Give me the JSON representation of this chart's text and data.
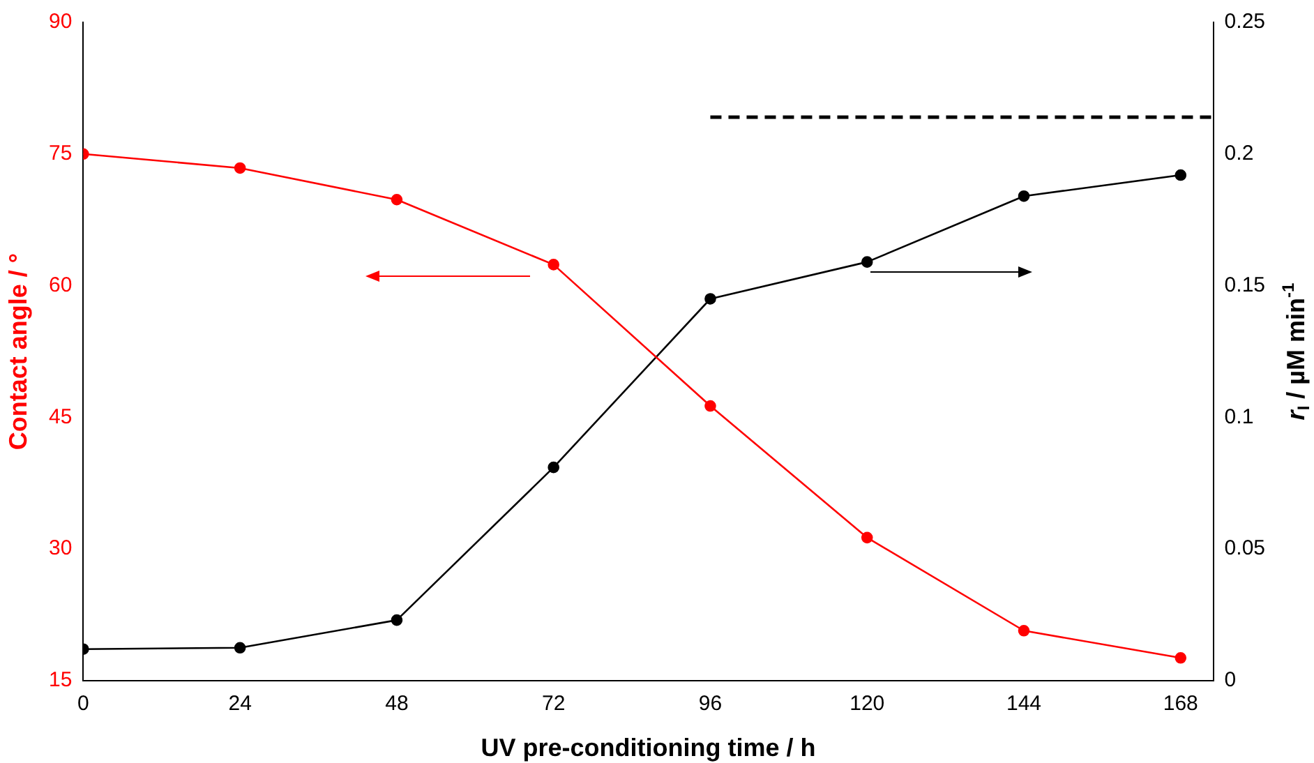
{
  "chart_data": {
    "type": "line",
    "xlabel": "UV pre-conditioning time / h",
    "ylabel": "Contact angle / °",
    "y2label": "r$_{I}$ / µM min$^{-1}$",
    "x": [
      0,
      24,
      48,
      72,
      96,
      120,
      144,
      168
    ],
    "series": [
      {
        "color": "#ff0000",
        "values": [
          75,
          73.4,
          69.8,
          62.4,
          46.3,
          31.3,
          20.7,
          17.6
        ]
      },
      {
        "color": "#000000",
        "axis": "y2",
        "values": [
          0.012,
          0.0125,
          0.023,
          0.081,
          0.145,
          0.159,
          0.184,
          0.192
        ]
      },
      {
        "color": "#000000",
        "axis": "y2",
        "x": [
          96,
          173
        ],
        "values": [
          0.214,
          0.214
        ],
        "line_style": "dashed",
        "marker": "none"
      }
    ],
    "xlim": [
      0,
      173
    ],
    "xticks": [
      0,
      24,
      48,
      72,
      96,
      120,
      144,
      168
    ],
    "ylim": [
      15,
      90
    ],
    "yticks": [
      15,
      30,
      45,
      60,
      75,
      90
    ],
    "y2lim": [
      0,
      0.25
    ],
    "y2ticks": [
      0,
      0.05,
      0.1,
      0.15,
      0.2,
      0.25
    ],
    "grid": false,
    "legend": false,
    "marker": "circle",
    "line_style": "solid"
  }
}
